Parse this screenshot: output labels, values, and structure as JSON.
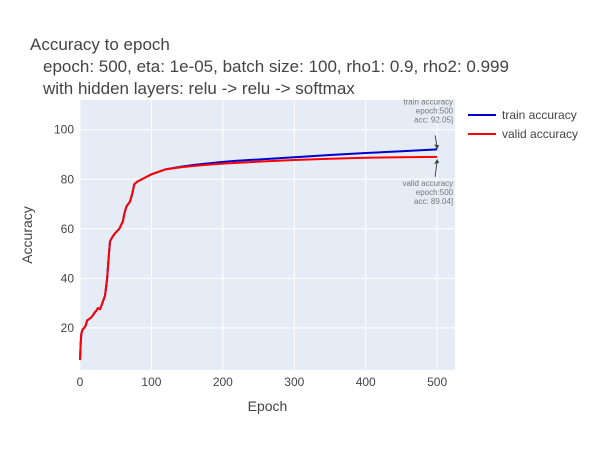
{
  "chart_data": {
    "type": "line",
    "title": "Accuracy to epoch",
    "subtitle_lines": [
      "epoch: 500, eta: 1e-05, batch size: 100, rho1: 0.9, rho2: 0.999",
      "with hidden layers: relu -> relu -> softmax"
    ],
    "xlabel": "Epoch",
    "ylabel": "Accuracy",
    "xlim": [
      0,
      525
    ],
    "ylim": [
      3,
      112
    ],
    "x_ticks": [
      0,
      100,
      200,
      300,
      400,
      500
    ],
    "y_ticks": [
      20,
      40,
      60,
      80,
      100
    ],
    "grid": true,
    "legend_position": "top-right",
    "series": [
      {
        "name": "train accuracy",
        "color": "#0000cc",
        "points": [
          [
            0,
            7
          ],
          [
            1,
            14
          ],
          [
            2,
            18
          ],
          [
            4,
            19.5
          ],
          [
            6,
            20
          ],
          [
            8,
            21
          ],
          [
            10,
            23
          ],
          [
            15,
            24
          ],
          [
            18,
            25
          ],
          [
            20,
            26
          ],
          [
            23,
            27
          ],
          [
            25,
            28
          ],
          [
            28,
            27.5
          ],
          [
            30,
            29
          ],
          [
            35,
            33
          ],
          [
            38,
            40
          ],
          [
            40,
            48
          ],
          [
            42,
            55
          ],
          [
            46,
            57
          ],
          [
            50,
            58.5
          ],
          [
            55,
            60
          ],
          [
            60,
            63
          ],
          [
            62,
            66
          ],
          [
            65,
            69
          ],
          [
            70,
            71
          ],
          [
            73,
            74
          ],
          [
            76,
            78
          ],
          [
            80,
            79
          ],
          [
            90,
            80.5
          ],
          [
            100,
            82
          ],
          [
            120,
            84
          ],
          [
            140,
            85
          ],
          [
            160,
            85.8
          ],
          [
            180,
            86.4
          ],
          [
            200,
            87
          ],
          [
            220,
            87.5
          ],
          [
            250,
            88
          ],
          [
            300,
            88.9
          ],
          [
            350,
            89.8
          ],
          [
            400,
            90.6
          ],
          [
            450,
            91.3
          ],
          [
            500,
            92.05
          ]
        ]
      },
      {
        "name": "valid accuracy",
        "color": "#ff0000",
        "points": [
          [
            0,
            7
          ],
          [
            1,
            14
          ],
          [
            2,
            18
          ],
          [
            4,
            19.5
          ],
          [
            6,
            20
          ],
          [
            8,
            21
          ],
          [
            10,
            23
          ],
          [
            15,
            24
          ],
          [
            18,
            25
          ],
          [
            20,
            26
          ],
          [
            23,
            27
          ],
          [
            25,
            28
          ],
          [
            28,
            27.5
          ],
          [
            30,
            29
          ],
          [
            35,
            33
          ],
          [
            38,
            40
          ],
          [
            40,
            48
          ],
          [
            42,
            55
          ],
          [
            46,
            57
          ],
          [
            50,
            58.5
          ],
          [
            55,
            60
          ],
          [
            60,
            63
          ],
          [
            62,
            66
          ],
          [
            65,
            69
          ],
          [
            70,
            71
          ],
          [
            73,
            74
          ],
          [
            76,
            78
          ],
          [
            80,
            79
          ],
          [
            90,
            80.5
          ],
          [
            100,
            82
          ],
          [
            120,
            84
          ],
          [
            140,
            84.8
          ],
          [
            160,
            85.4
          ],
          [
            180,
            85.9
          ],
          [
            200,
            86.3
          ],
          [
            250,
            87.1
          ],
          [
            300,
            87.8
          ],
          [
            350,
            88.3
          ],
          [
            400,
            88.7
          ],
          [
            450,
            88.9
          ],
          [
            500,
            89.04
          ]
        ]
      }
    ],
    "annotations": [
      {
        "series": "train accuracy",
        "lines": [
          "train accuracy",
          "epoch:500",
          "acc: 92.05]"
        ],
        "x": 500,
        "y": 92.05,
        "side": "above"
      },
      {
        "series": "valid accuracy",
        "lines": [
          "valid accuracy",
          "epoch:500",
          "acc: 89.04]"
        ],
        "x": 500,
        "y": 89.04,
        "side": "below"
      }
    ]
  }
}
